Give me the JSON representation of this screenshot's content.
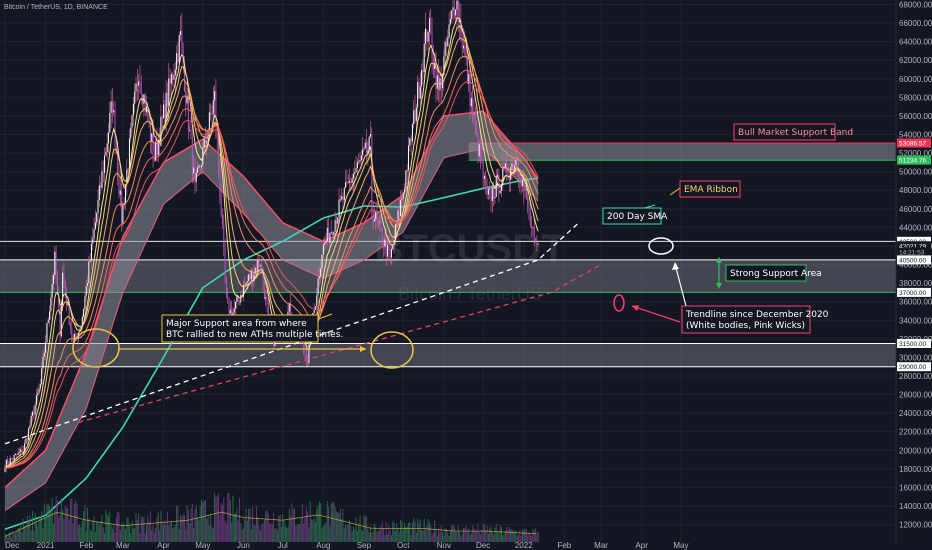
{
  "header": {
    "title": "Bitcoin / TetherUS, 1D, BINANCE"
  },
  "watermark": {
    "symbol": "BTCUSDT",
    "name": "Bitcoin / TetherUS"
  },
  "colors": {
    "background": "#131722",
    "grid": "#1f2330",
    "candle_up": "#ffffff",
    "candle_down": "#b44fd0",
    "wick": "#e06aa0",
    "sma200": "#3fd6b8",
    "support_zone": "#6b6e78",
    "bull_band_fill": "#a8aab2",
    "bull_band_line_upper": "#f23658",
    "bull_band_line_lower": "#2ebd5b",
    "ema_ribbon": [
      "#fff29a",
      "#ffd27a",
      "#ffb16a",
      "#ff9062",
      "#ff6f5c",
      "#f25260"
    ],
    "annotation_yellow": "#e8c547",
    "annotation_white": "#ffffff",
    "annotation_red": "#ff3d6e",
    "annotation_green": "#2ebd5b",
    "annotation_teal": "#3fd6b8"
  },
  "annotations": {
    "bull_band": "Bull Market Support Band",
    "ema_ribbon": "EMA Ribbon",
    "sma200": "200 Day SMA",
    "strong_support": "Strong Support Area",
    "major_support_line1": "Major Support area from where",
    "major_support_line2": "BTC rallied to new ATHs multiple times.",
    "trendline_line1": "Trendline since December 2020",
    "trendline_line2": "(White bodies, Pink Wicks)"
  },
  "price_tags": [
    {
      "value": "53086.57",
      "bg": "#f23658",
      "color": "#ffffff",
      "level": 53086.57
    },
    {
      "value": "51234.76",
      "bg": "#2ebd5b",
      "color": "#ffffff",
      "level": 51234.76
    },
    {
      "value": "42500.00",
      "bg": "#ffffff",
      "color": "#131722",
      "level": 42500
    },
    {
      "value": "42021.79",
      "bg": "#131722",
      "color": "#ffffff",
      "level": 42021.79
    },
    {
      "value": "14:21:53",
      "bg": "#131722",
      "color": "#b2b5be",
      "level": 41350
    },
    {
      "value": "40500.00",
      "bg": "#ffffff",
      "color": "#131722",
      "level": 40500
    },
    {
      "value": "37000.00",
      "bg": "#ffffff",
      "color": "#131722",
      "level": 37000
    },
    {
      "value": "31500.00",
      "bg": "#ffffff",
      "color": "#131722",
      "level": 31500
    },
    {
      "value": "29000.00",
      "bg": "#ffffff",
      "color": "#131722",
      "level": 29000
    }
  ],
  "chart_data": {
    "type": "candlestick",
    "title": "Bitcoin / TetherUS, 1D, BINANCE",
    "x_tick_labels": [
      "Dec",
      "2021",
      "Feb",
      "Mar",
      "Apr",
      "May",
      "Jun",
      "Jul",
      "Aug",
      "Sep",
      "Oct",
      "Nov",
      "Dec",
      "2022",
      "Feb",
      "Mar",
      "Apr",
      "May"
    ],
    "y_tick_labels": [
      "68000.00",
      "66000.00",
      "64000.00",
      "62000.00",
      "60000.00",
      "58000.00",
      "56000.00",
      "54000.00",
      "52000.00",
      "50000.00",
      "48000.00",
      "46000.00",
      "44000.00",
      "42000.00",
      "40000.00",
      "38000.00",
      "36000.00",
      "34000.00",
      "32000.00",
      "30000.00",
      "28000.00",
      "26000.00",
      "24000.00",
      "22000.00",
      "20000.00",
      "18000.00",
      "16000.00",
      "14000.00",
      "12000.00"
    ],
    "price_path": [
      [
        "2020-12-01",
        18500
      ],
      [
        "2020-12-15",
        20000
      ],
      [
        "2020-12-28",
        27000
      ],
      [
        "2021-01-08",
        40500
      ],
      [
        "2021-01-12",
        33000
      ],
      [
        "2021-01-14",
        39000
      ],
      [
        "2021-01-22",
        31500
      ],
      [
        "2021-01-28",
        33500
      ],
      [
        "2021-02-08",
        44500
      ],
      [
        "2021-02-21",
        57500
      ],
      [
        "2021-02-28",
        45000
      ],
      [
        "2021-03-13",
        61200
      ],
      [
        "2021-03-25",
        51500
      ],
      [
        "2021-04-14",
        64500
      ],
      [
        "2021-04-25",
        48000
      ],
      [
        "2021-05-10",
        58000
      ],
      [
        "2021-05-19",
        36000
      ],
      [
        "2021-05-23",
        34500
      ],
      [
        "2021-06-01",
        37500
      ],
      [
        "2021-06-14",
        40500
      ],
      [
        "2021-06-22",
        31500
      ],
      [
        "2021-07-06",
        35000
      ],
      [
        "2021-07-20",
        29800
      ],
      [
        "2021-07-31",
        41500
      ],
      [
        "2021-08-23",
        49500
      ],
      [
        "2021-09-06",
        52800
      ],
      [
        "2021-09-07",
        46000
      ],
      [
        "2021-09-21",
        40500
      ],
      [
        "2021-10-01",
        48000
      ],
      [
        "2021-10-20",
        66000
      ],
      [
        "2021-10-28",
        58500
      ],
      [
        "2021-11-10",
        69000
      ],
      [
        "2021-11-26",
        53500
      ],
      [
        "2021-12-04",
        47000
      ],
      [
        "2021-12-27",
        51500
      ],
      [
        "2022-01-04",
        46000
      ],
      [
        "2022-01-10",
        41500
      ],
      [
        "2022-01-12",
        42021.79
      ]
    ],
    "sma200_path": [
      [
        "2020-12-01",
        11500
      ],
      [
        "2021-01-01",
        13000
      ],
      [
        "2021-02-01",
        17000
      ],
      [
        "2021-03-01",
        22500
      ],
      [
        "2021-04-01",
        30000
      ],
      [
        "2021-05-01",
        37500
      ],
      [
        "2021-06-01",
        40500
      ],
      [
        "2021-07-01",
        42500
      ],
      [
        "2021-08-01",
        45000
      ],
      [
        "2021-09-01",
        46300
      ],
      [
        "2021-10-01",
        46200
      ],
      [
        "2021-11-01",
        47200
      ],
      [
        "2021-12-01",
        48200
      ],
      [
        "2022-01-01",
        49100
      ],
      [
        "2022-01-12",
        49300
      ]
    ],
    "bull_band_upper": [
      [
        "2020-12-01",
        16000
      ],
      [
        "2021-01-01",
        20000
      ],
      [
        "2021-02-01",
        30500
      ],
      [
        "2021-03-01",
        43000
      ],
      [
        "2021-04-01",
        51000
      ],
      [
        "2021-05-01",
        53500
      ],
      [
        "2021-06-01",
        49500
      ],
      [
        "2021-07-01",
        44500
      ],
      [
        "2021-08-01",
        42500
      ],
      [
        "2021-09-01",
        44500
      ],
      [
        "2021-10-01",
        47500
      ],
      [
        "2021-11-01",
        56000
      ],
      [
        "2021-12-01",
        56500
      ],
      [
        "2022-01-01",
        51500
      ],
      [
        "2022-01-12",
        49200
      ]
    ],
    "bull_band_lower": [
      [
        "2020-12-01",
        13500
      ],
      [
        "2021-01-01",
        16500
      ],
      [
        "2021-02-01",
        24500
      ],
      [
        "2021-03-01",
        37000
      ],
      [
        "2021-04-01",
        46500
      ],
      [
        "2021-05-01",
        50000
      ],
      [
        "2021-06-01",
        45500
      ],
      [
        "2021-07-01",
        40500
      ],
      [
        "2021-08-01",
        38500
      ],
      [
        "2021-09-01",
        40500
      ],
      [
        "2021-10-01",
        43500
      ],
      [
        "2021-11-01",
        51500
      ],
      [
        "2021-12-01",
        52500
      ],
      [
        "2022-01-01",
        48500
      ],
      [
        "2022-01-12",
        46800
      ]
    ],
    "support_zones": [
      {
        "top": 53086.57,
        "bottom": 51234.76,
        "label": "Bull Market Support Band"
      },
      {
        "top": 40500,
        "bottom": 37000,
        "label": "Strong Support Area"
      },
      {
        "top": 31500,
        "bottom": 29000,
        "label": "Major Support area"
      }
    ],
    "horizontal_lines": [
      42500
    ],
    "trendline_white": [
      [
        "2020-12-01",
        20700
      ],
      [
        "2022-01-12",
        40500
      ],
      [
        "2022-02-12",
        44500
      ]
    ],
    "trendline_red": [
      [
        "2021-01-26",
        23000
      ],
      [
        "2022-01-22",
        37000
      ],
      [
        "2022-03-01",
        40000
      ]
    ],
    "volume_path": [
      [
        "2020-12-01",
        2
      ],
      [
        "2021-01-10",
        11
      ],
      [
        "2021-02-01",
        8
      ],
      [
        "2021-03-01",
        6
      ],
      [
        "2021-04-20",
        8
      ],
      [
        "2021-05-15",
        11
      ],
      [
        "2021-06-01",
        9
      ],
      [
        "2021-07-01",
        8
      ],
      [
        "2021-07-28",
        10
      ],
      [
        "2021-09-07",
        5
      ],
      [
        "2021-10-15",
        5
      ],
      [
        "2021-11-10",
        4
      ],
      [
        "2021-12-04",
        4
      ],
      [
        "2022-01-12",
        3
      ]
    ]
  }
}
